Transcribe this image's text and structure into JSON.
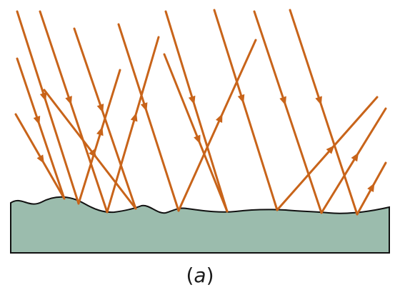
{
  "figure": {
    "caption_open": "(",
    "caption_letter": "a",
    "caption_close": ")"
  },
  "colors": {
    "ray": "#c8641a",
    "surface_fill": "#9bbcad",
    "surface_stroke": "#111111",
    "caption_text": "#1a1a1a"
  },
  "rays": {
    "incident_count": 9,
    "reflected_count": 9,
    "direction_incident": "down-right",
    "direction_reflected": "up-right"
  }
}
